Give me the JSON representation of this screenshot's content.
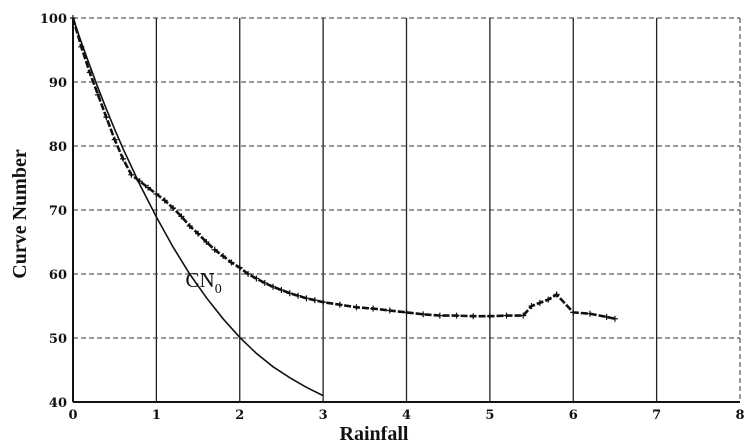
{
  "chart_data": {
    "type": "line",
    "title": "",
    "xlabel": "Rainfall",
    "ylabel": "Curve Number",
    "xlim": [
      0,
      8
    ],
    "ylim": [
      40,
      100
    ],
    "xticks": [
      "0",
      "1",
      "2",
      "3",
      "4",
      "5",
      "6",
      "7",
      "8"
    ],
    "yticks": [
      "40",
      "50",
      "60",
      "70",
      "80",
      "90",
      "100"
    ],
    "grid": true,
    "annotation": {
      "text": "CN",
      "subscript": "0",
      "x": 1.35,
      "y": 58
    },
    "series": [
      {
        "style": "line",
        "x": [
          0,
          0.1,
          0.2,
          0.3,
          0.4,
          0.5,
          0.6,
          0.8,
          1.0,
          1.2,
          1.4,
          1.6,
          1.8,
          2.0,
          2.2,
          2.4,
          2.6,
          2.8,
          3.0
        ],
        "y": [
          100,
          96.2,
          92.6,
          89.1,
          85.8,
          82.6,
          79.6,
          74.0,
          68.9,
          64.2,
          60.0,
          56.3,
          53.0,
          50.1,
          47.6,
          45.5,
          43.8,
          42.3,
          41.0
        ]
      },
      {
        "style": "points",
        "x": [
          0,
          0.1,
          0.2,
          0.3,
          0.4,
          0.5,
          0.6,
          0.7,
          0.8,
          0.9,
          1.0,
          1.1,
          1.2,
          1.3,
          1.4,
          1.5,
          1.6,
          1.7,
          1.8,
          1.9,
          2.0,
          2.1,
          2.2,
          2.3,
          2.4,
          2.5,
          2.6,
          2.7,
          2.8,
          2.9,
          3.0,
          3.2,
          3.4,
          3.6,
          3.8,
          4.0,
          4.2,
          4.4,
          4.6,
          4.8,
          5.0,
          5.2,
          5.4,
          5.5,
          5.6,
          5.7,
          5.8,
          6.0,
          6.2,
          6.4,
          6.5
        ],
        "y": [
          100,
          95.5,
          91.5,
          88.0,
          84.5,
          81.0,
          78.0,
          75.5,
          74.5,
          73.5,
          72.5,
          71.5,
          70.3,
          69.0,
          67.5,
          66.3,
          65.0,
          63.8,
          62.8,
          61.8,
          61.0,
          60.0,
          59.3,
          58.6,
          58.0,
          57.5,
          57.0,
          56.6,
          56.2,
          55.9,
          55.6,
          55.2,
          54.8,
          54.6,
          54.3,
          54.0,
          53.7,
          53.5,
          53.5,
          53.4,
          53.4,
          53.5,
          53.5,
          55.0,
          55.5,
          56.0,
          56.8,
          54.0,
          53.8,
          53.3,
          53.0
        ]
      }
    ]
  }
}
